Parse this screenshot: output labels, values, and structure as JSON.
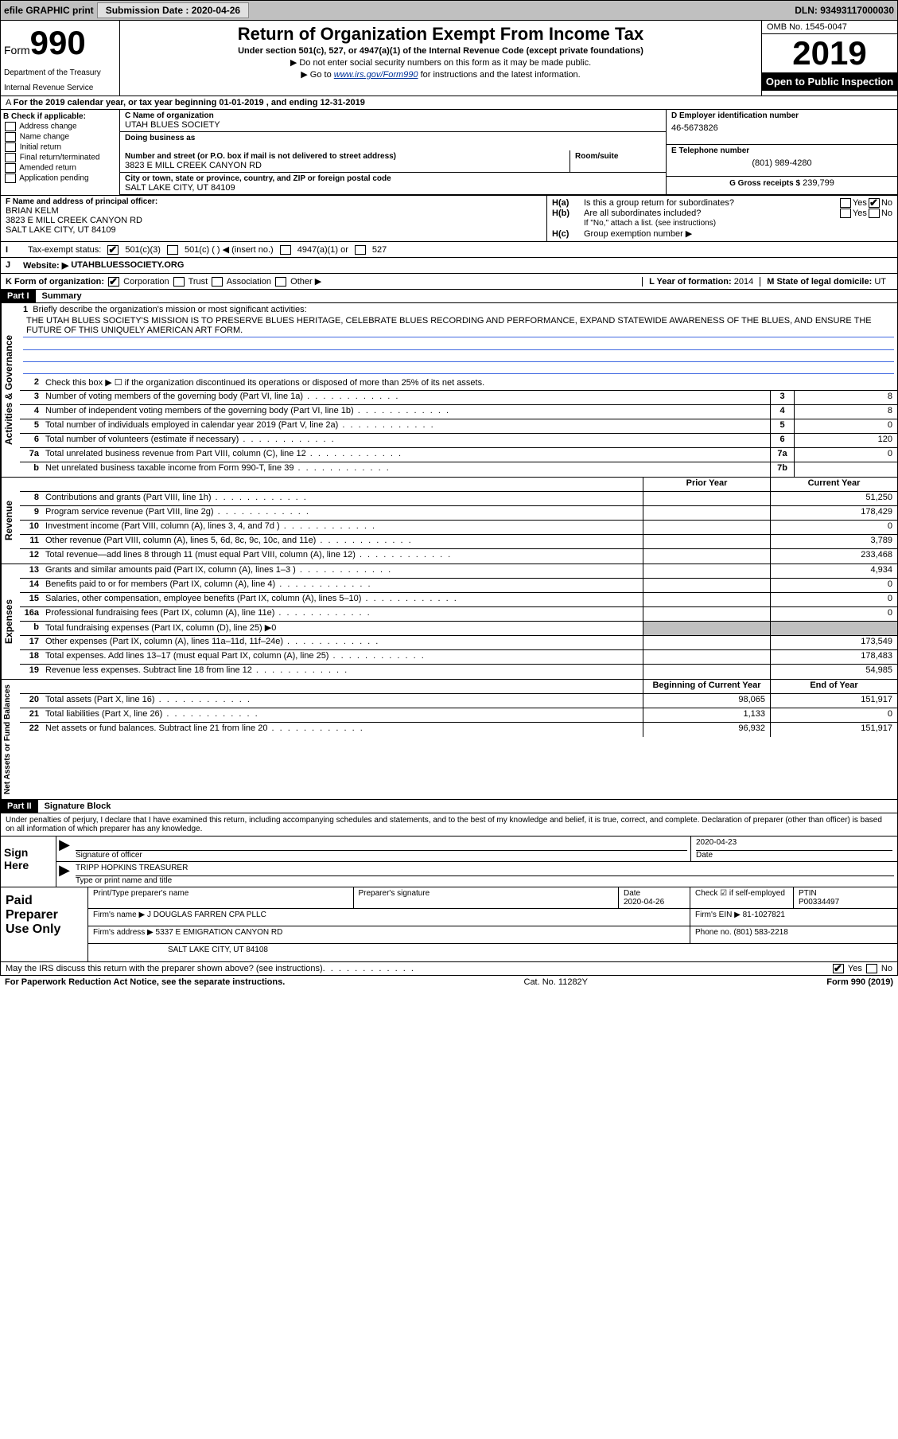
{
  "topbar": {
    "efile": "efile GRAPHIC print",
    "submission_label": "Submission Date : 2020-04-26",
    "dln": "DLN: 93493117000030"
  },
  "header": {
    "form_prefix": "Form",
    "form_num": "990",
    "dept": "Department of the Treasury",
    "irs": "Internal Revenue Service",
    "title": "Return of Organization Exempt From Income Tax",
    "subtitle": "Under section 501(c), 527, or 4947(a)(1) of the Internal Revenue Code (except private foundations)",
    "note1": "▶ Do not enter social security numbers on this form as it may be made public.",
    "note2_pre": "▶ Go to ",
    "note2_link": "www.irs.gov/Form990",
    "note2_post": " for instructions and the latest information.",
    "omb": "OMB No. 1545-0047",
    "year": "2019",
    "inspection": "Open to Public Inspection"
  },
  "period": "For the 2019 calendar year, or tax year beginning 01-01-2019   , and ending 12-31-2019",
  "col_b": {
    "label": "B Check if applicable:",
    "items": [
      "Address change",
      "Name change",
      "Initial return",
      "Final return/terminated",
      "Amended return",
      "Application pending"
    ]
  },
  "col_c": {
    "name_label": "C Name of organization",
    "name": "UTAH BLUES SOCIETY",
    "dba_label": "Doing business as",
    "dba": "",
    "addr_label": "Number and street (or P.O. box if mail is not delivered to street address)",
    "suite_label": "Room/suite",
    "addr": "3823 E MILL CREEK CANYON RD",
    "city_label": "City or town, state or province, country, and ZIP or foreign postal code",
    "city": "SALT LAKE CITY, UT  84109"
  },
  "col_d": {
    "ein_label": "D Employer identification number",
    "ein": "46-5673826",
    "phone_label": "E Telephone number",
    "phone": "(801) 989-4280",
    "gross_label": "G Gross receipts $",
    "gross": "239,799"
  },
  "f": {
    "label": "F  Name and address of principal officer:",
    "name": "BRIAN KELM",
    "addr1": "3823 E MILL CREEK CANYON RD",
    "addr2": "SALT LAKE CITY, UT  84109"
  },
  "h": {
    "a": "Is this a group return for subordinates?",
    "b": "Are all subordinates included?",
    "b_note": "If \"No,\" attach a list. (see instructions)",
    "c": "Group exemption number ▶"
  },
  "status": {
    "label": "Tax-exempt status:",
    "c3": "501(c)(3)",
    "c_other": "501(c) (  ) ◀ (insert no.)",
    "a1": "4947(a)(1) or",
    "s527": "527"
  },
  "website": {
    "label": "Website: ▶",
    "value": "UTAHBLUESSOCIETY.ORG"
  },
  "k": {
    "label": "K Form of organization:",
    "opts": [
      "Corporation",
      "Trust",
      "Association",
      "Other ▶"
    ]
  },
  "l": {
    "label": "L Year of formation:",
    "value": "2014"
  },
  "m": {
    "label": "M State of legal domicile:",
    "value": "UT"
  },
  "part1": {
    "tag": "Part I",
    "name": "Summary"
  },
  "summary": {
    "line1_label": "Briefly describe the organization's mission or most significant activities:",
    "mission": "THE UTAH BLUES SOCIETY'S MISSION IS TO PRESERVE BLUES HERITAGE, CELEBRATE BLUES RECORDING AND PERFORMANCE, EXPAND STATEWIDE AWARENESS OF THE BLUES, AND ENSURE THE FUTURE OF THIS UNIQUELY AMERICAN ART FORM.",
    "line2": "Check this box ▶ ☐  if the organization discontinued its operations or disposed of more than 25% of its net assets.",
    "rows_top": [
      {
        "n": "3",
        "d": "Number of voting members of the governing body (Part VI, line 1a)",
        "box": "3",
        "v": "8"
      },
      {
        "n": "4",
        "d": "Number of independent voting members of the governing body (Part VI, line 1b)",
        "box": "4",
        "v": "8"
      },
      {
        "n": "5",
        "d": "Total number of individuals employed in calendar year 2019 (Part V, line 2a)",
        "box": "5",
        "v": "0"
      },
      {
        "n": "6",
        "d": "Total number of volunteers (estimate if necessary)",
        "box": "6",
        "v": "120"
      },
      {
        "n": "7a",
        "d": "Total unrelated business revenue from Part VIII, column (C), line 12",
        "box": "7a",
        "v": "0"
      },
      {
        "n": "b",
        "d": "Net unrelated business taxable income from Form 990-T, line 39",
        "box": "7b",
        "v": ""
      }
    ],
    "header_prior": "Prior Year",
    "header_current": "Current Year",
    "revenue_rows": [
      {
        "n": "8",
        "d": "Contributions and grants (Part VIII, line 1h)",
        "p": "",
        "c": "51,250"
      },
      {
        "n": "9",
        "d": "Program service revenue (Part VIII, line 2g)",
        "p": "",
        "c": "178,429"
      },
      {
        "n": "10",
        "d": "Investment income (Part VIII, column (A), lines 3, 4, and 7d )",
        "p": "",
        "c": "0"
      },
      {
        "n": "11",
        "d": "Other revenue (Part VIII, column (A), lines 5, 6d, 8c, 9c, 10c, and 11e)",
        "p": "",
        "c": "3,789"
      },
      {
        "n": "12",
        "d": "Total revenue—add lines 8 through 11 (must equal Part VIII, column (A), line 12)",
        "p": "",
        "c": "233,468"
      }
    ],
    "expense_rows": [
      {
        "n": "13",
        "d": "Grants and similar amounts paid (Part IX, column (A), lines 1–3 )",
        "p": "",
        "c": "4,934"
      },
      {
        "n": "14",
        "d": "Benefits paid to or for members (Part IX, column (A), line 4)",
        "p": "",
        "c": "0"
      },
      {
        "n": "15",
        "d": "Salaries, other compensation, employee benefits (Part IX, column (A), lines 5–10)",
        "p": "",
        "c": "0"
      },
      {
        "n": "16a",
        "d": "Professional fundraising fees (Part IX, column (A), line 11e)",
        "p": "",
        "c": "0"
      },
      {
        "n": "b",
        "d": "Total fundraising expenses (Part IX, column (D), line 25) ▶0",
        "p": "grey",
        "c": "grey"
      },
      {
        "n": "17",
        "d": "Other expenses (Part IX, column (A), lines 11a–11d, 11f–24e)",
        "p": "",
        "c": "173,549"
      },
      {
        "n": "18",
        "d": "Total expenses. Add lines 13–17 (must equal Part IX, column (A), line 25)",
        "p": "",
        "c": "178,483"
      },
      {
        "n": "19",
        "d": "Revenue less expenses. Subtract line 18 from line 12",
        "p": "",
        "c": "54,985"
      }
    ],
    "header_begin": "Beginning of Current Year",
    "header_end": "End of Year",
    "net_rows": [
      {
        "n": "20",
        "d": "Total assets (Part X, line 16)",
        "p": "98,065",
        "c": "151,917"
      },
      {
        "n": "21",
        "d": "Total liabilities (Part X, line 26)",
        "p": "1,133",
        "c": "0"
      },
      {
        "n": "22",
        "d": "Net assets or fund balances. Subtract line 21 from line 20",
        "p": "96,932",
        "c": "151,917"
      }
    ]
  },
  "side_labels": {
    "gov": "Activities & Governance",
    "rev": "Revenue",
    "exp": "Expenses",
    "net": "Net Assets or Fund Balances"
  },
  "part2": {
    "tag": "Part II",
    "name": "Signature Block"
  },
  "sig": {
    "intro": "Under penalties of perjury, I declare that I have examined this return, including accompanying schedules and statements, and to the best of my knowledge and belief, it is true, correct, and complete. Declaration of preparer (other than officer) is based on all information of which preparer has any knowledge.",
    "here": "Sign Here",
    "officer_sig": "Signature of officer",
    "date_label": "Date",
    "date": "2020-04-23",
    "name": "TRIPP HOPKINS  TREASURER",
    "name_label": "Type or print name and title"
  },
  "preparer": {
    "label": "Paid Preparer Use Only",
    "print_label": "Print/Type preparer's name",
    "sig_label": "Preparer's signature",
    "date_label": "Date",
    "date": "2020-04-26",
    "check_label": "Check ☑ if self-employed",
    "ptin_label": "PTIN",
    "ptin": "P00334497",
    "firm_name_label": "Firm's name    ▶",
    "firm_name": "J DOUGLAS FARREN CPA PLLC",
    "firm_ein_label": "Firm's EIN ▶",
    "firm_ein": "81-1027821",
    "firm_addr_label": "Firm's address ▶",
    "firm_addr1": "5337 E EMIGRATION CANYON RD",
    "firm_addr2": "SALT LAKE CITY, UT  84108",
    "phone_label": "Phone no.",
    "phone": "(801) 583-2218"
  },
  "footer": {
    "discuss": "May the IRS discuss this return with the preparer shown above? (see instructions)",
    "paperwork": "For Paperwork Reduction Act Notice, see the separate instructions.",
    "cat": "Cat. No. 11282Y",
    "formno": "Form 990 (2019)"
  }
}
